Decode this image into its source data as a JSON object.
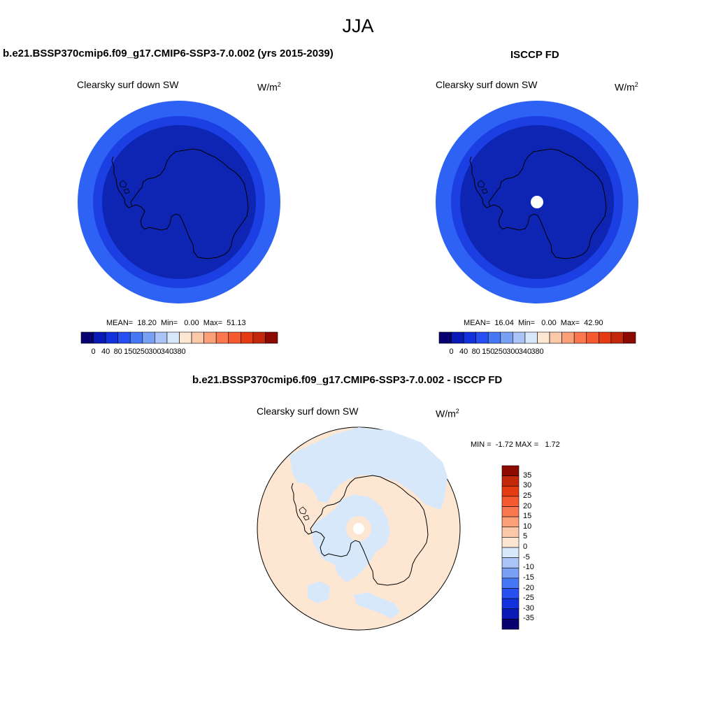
{
  "title": "JJA",
  "panels": [
    {
      "heading": "b.e21.BSSP370cmip6.f09_g17.CMIP6-SSP3-7.0.002 (yrs 2015-2039)",
      "variable": "Clearsky surf down SW",
      "units_base": "W/m",
      "units_exp": "2",
      "stats": "MEAN=  18.20  Min=   0.00  Max=  51.13",
      "stat_values": {
        "mean": 18.2,
        "min": 0.0,
        "max": 51.13
      },
      "has_polar_hole": false
    },
    {
      "heading": "ISCCP FD",
      "variable": "Clearsky surf down SW",
      "units_base": "W/m",
      "units_exp": "2",
      "stats": "MEAN=  16.04  Min=   0.00  Max=  42.90",
      "stat_values": {
        "mean": 16.04,
        "min": 0.0,
        "max": 42.9
      },
      "has_polar_hole": true
    }
  ],
  "colorbar_ticks": [
    "0",
    "40",
    "80",
    "150",
    "250",
    "300",
    "340",
    "380"
  ],
  "colorbar_colors": [
    "#08006e",
    "#0a1ab4",
    "#1432dc",
    "#2850f0",
    "#4678f5",
    "#7aa0f5",
    "#aac4f8",
    "#d7e8fb",
    "#fde6d2",
    "#fcc8aa",
    "#fca07a",
    "#fa7850",
    "#f55a30",
    "#e63c14",
    "#c3280a",
    "#8c0a00"
  ],
  "diff": {
    "heading": "b.e21.BSSP370cmip6.f09_g17.CMIP6-SSP3-7.0.002 - ISCCP FD",
    "variable": "Clearsky surf down SW",
    "units_base": "W/m",
    "units_exp": "2",
    "stats": "MIN =  -1.72 MAX =   1.72",
    "stat_values": {
      "min": -1.72,
      "max": 1.72
    },
    "ticks": [
      "35",
      "30",
      "25",
      "20",
      "15",
      "10",
      "5",
      "0",
      "-5",
      "-10",
      "-15",
      "-20",
      "-25",
      "-30",
      "-35"
    ],
    "colors": [
      "#8c0a00",
      "#c3280a",
      "#e63c14",
      "#f55a30",
      "#fa7850",
      "#fca07a",
      "#fcc8aa",
      "#fde6d2",
      "#d7e8fb",
      "#aac4f8",
      "#7aa0f5",
      "#4678f5",
      "#2850f0",
      "#1432dc",
      "#0a1ab4",
      "#08006e"
    ]
  },
  "colors": {
    "outer_ring": "#2d62f4",
    "middle_ring": "#1b3fe2",
    "inner_disk": "#0d25b2",
    "diff_positive": "#fde6d2",
    "diff_negative": "#d7e8fb",
    "coastline": "#000000"
  }
}
